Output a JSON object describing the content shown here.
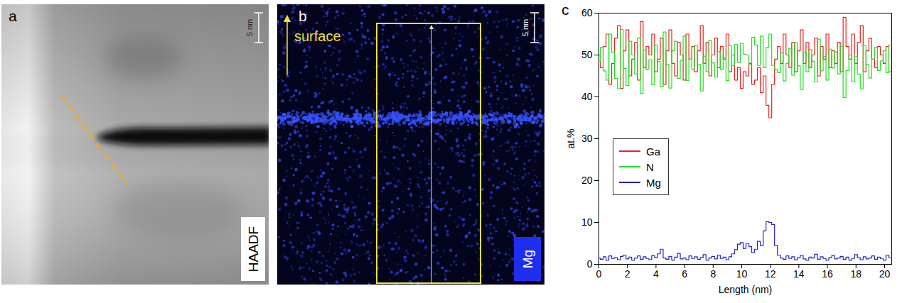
{
  "images": [
    {
      "letter": "a",
      "scale_bar": "5 nm",
      "label": "HAADF"
    },
    {
      "letter": "b",
      "scale_bar": "5 nm",
      "label": "Mg",
      "arrow_label": "surface"
    }
  ],
  "chart_data": {
    "type": "line",
    "panel_label": "c",
    "xlabel": "Length (nm)",
    "ylabel": "at.%",
    "xlim": [
      0,
      20.5
    ],
    "xticks": [
      0,
      2,
      4,
      6,
      8,
      10,
      12,
      14,
      16,
      18,
      20
    ],
    "ylim": [
      0,
      60
    ],
    "yticks": [
      0,
      10,
      20,
      30,
      40,
      50,
      60
    ],
    "grid": false,
    "legend": "center left",
    "line_style": "step",
    "x": [
      0,
      0.2,
      0.4,
      0.6,
      0.8,
      1,
      1.2,
      1.4,
      1.6,
      1.8,
      2,
      2.2,
      2.4,
      2.6,
      2.8,
      3,
      3.2,
      3.4,
      3.6,
      3.8,
      4,
      4.2,
      4.4,
      4.6,
      4.8,
      5,
      5.2,
      5.4,
      5.6,
      5.8,
      6,
      6.2,
      6.4,
      6.6,
      6.8,
      7,
      7.2,
      7.4,
      7.6,
      7.8,
      8,
      8.2,
      8.4,
      8.6,
      8.8,
      9,
      9.2,
      9.4,
      9.6,
      9.8,
      10,
      10.2,
      10.4,
      10.6,
      10.8,
      11,
      11.2,
      11.4,
      11.6,
      11.8,
      12,
      12.2,
      12.4,
      12.6,
      12.8,
      13,
      13.2,
      13.4,
      13.6,
      13.8,
      14,
      14.2,
      14.4,
      14.6,
      14.8,
      15,
      15.2,
      15.4,
      15.6,
      15.8,
      16,
      16.2,
      16.4,
      16.6,
      16.8,
      17,
      17.2,
      17.4,
      17.6,
      17.8,
      18,
      18.2,
      18.4,
      18.6,
      18.8,
      19,
      19.2,
      19.4,
      19.6,
      19.8,
      20,
      20.2,
      20.4
    ],
    "series": [
      {
        "name": "Ga",
        "color": "#e8221f",
        "values": [
          50,
          47,
          52,
          55,
          43,
          48,
          54,
          57,
          42,
          51,
          56,
          45,
          49,
          53,
          44,
          58,
          47,
          52,
          50,
          55,
          46,
          49,
          54,
          43,
          51,
          56,
          48,
          45,
          53,
          50,
          44,
          55,
          49,
          52,
          46,
          51,
          57,
          48,
          53,
          45,
          50,
          54,
          47,
          52,
          49,
          55,
          46,
          50,
          44,
          47,
          42,
          46,
          45,
          48,
          43,
          44,
          47,
          41,
          45,
          38,
          35,
          43,
          49,
          52,
          48,
          55,
          50,
          47,
          53,
          46,
          51,
          56,
          48,
          53,
          47,
          50,
          54,
          45,
          52,
          49,
          55,
          47,
          51,
          48,
          53,
          46,
          59,
          52,
          49,
          55,
          48,
          53,
          57,
          46,
          51,
          54,
          49,
          47,
          52,
          50,
          48,
          52,
          46
        ]
      },
      {
        "name": "N",
        "color": "#22dd22",
        "values": [
          48.5,
          51.8,
          46.2,
          44.0,
          55.0,
          50.6,
          44.4,
          41.9,
          56.1,
          46.8,
          42.7,
          53.3,
          50.0,
          45.5,
          54.0,
          40.8,
          51.2,
          46.6,
          48.9,
          42.9,
          52.4,
          48.5,
          42.4,
          55.5,
          47.8,
          42.1,
          51.0,
          53.3,
          44.4,
          48.7,
          54.5,
          43.9,
          49.0,
          46.6,
          52.2,
          47.8,
          41.4,
          49.7,
          46.0,
          53.5,
          48.1,
          44.7,
          50.8,
          46.6,
          49.3,
          43.9,
          52.2,
          47.5,
          52.5,
          48.2,
          52.8,
          50.2,
          50.0,
          47.8,
          54.2,
          52.4,
          47.5,
          54.5,
          47.0,
          51.8,
          55.0,
          47.5,
          46.5,
          45.8,
          50.5,
          43.8,
          48.0,
          51.6,
          45.2,
          52.9,
          47.4,
          41.8,
          50.7,
          46.0,
          51.3,
          48.5,
          43.6,
          53.8,
          46.2,
          49.6,
          44.0,
          51.4,
          46.9,
          50.7,
          45.5,
          52.1,
          39.8,
          46.3,
          50.0,
          43.6,
          49.7,
          45.4,
          41.9,
          52.2,
          47.7,
          44.5,
          49.0,
          51.8,
          46.3,
          48.6,
          51.0,
          45.8,
          52.4
        ]
      },
      {
        "name": "Mg",
        "color": "#2222cc",
        "values": [
          1.5,
          1.2,
          1.8,
          1.0,
          2.0,
          1.4,
          1.6,
          1.1,
          1.9,
          2.2,
          1.3,
          1.7,
          1.0,
          1.5,
          2.0,
          1.2,
          1.8,
          1.4,
          1.1,
          2.1,
          1.6,
          2.5,
          3.6,
          1.5,
          1.2,
          1.9,
          1.0,
          1.7,
          2.6,
          1.3,
          1.5,
          1.1,
          2.0,
          1.4,
          1.8,
          1.2,
          1.6,
          2.3,
          1.0,
          1.5,
          1.9,
          1.3,
          2.2,
          1.4,
          1.7,
          1.1,
          1.8,
          2.5,
          3.5,
          4.8,
          5.2,
          3.8,
          5.0,
          4.2,
          2.8,
          3.6,
          5.5,
          4.5,
          8.0,
          10.2,
          10.0,
          9.5,
          4.5,
          2.2,
          1.5,
          1.2,
          2.0,
          1.4,
          1.8,
          1.1,
          1.6,
          2.2,
          1.3,
          1.0,
          1.7,
          1.5,
          2.4,
          1.2,
          1.8,
          1.4,
          1.0,
          1.6,
          2.1,
          1.3,
          1.5,
          1.9,
          1.2,
          1.7,
          1.0,
          1.4,
          2.3,
          1.6,
          1.1,
          1.8,
          1.3,
          1.5,
          2.0,
          1.2,
          1.7,
          1.4,
          1.0,
          2.2,
          1.6
        ]
      }
    ]
  }
}
